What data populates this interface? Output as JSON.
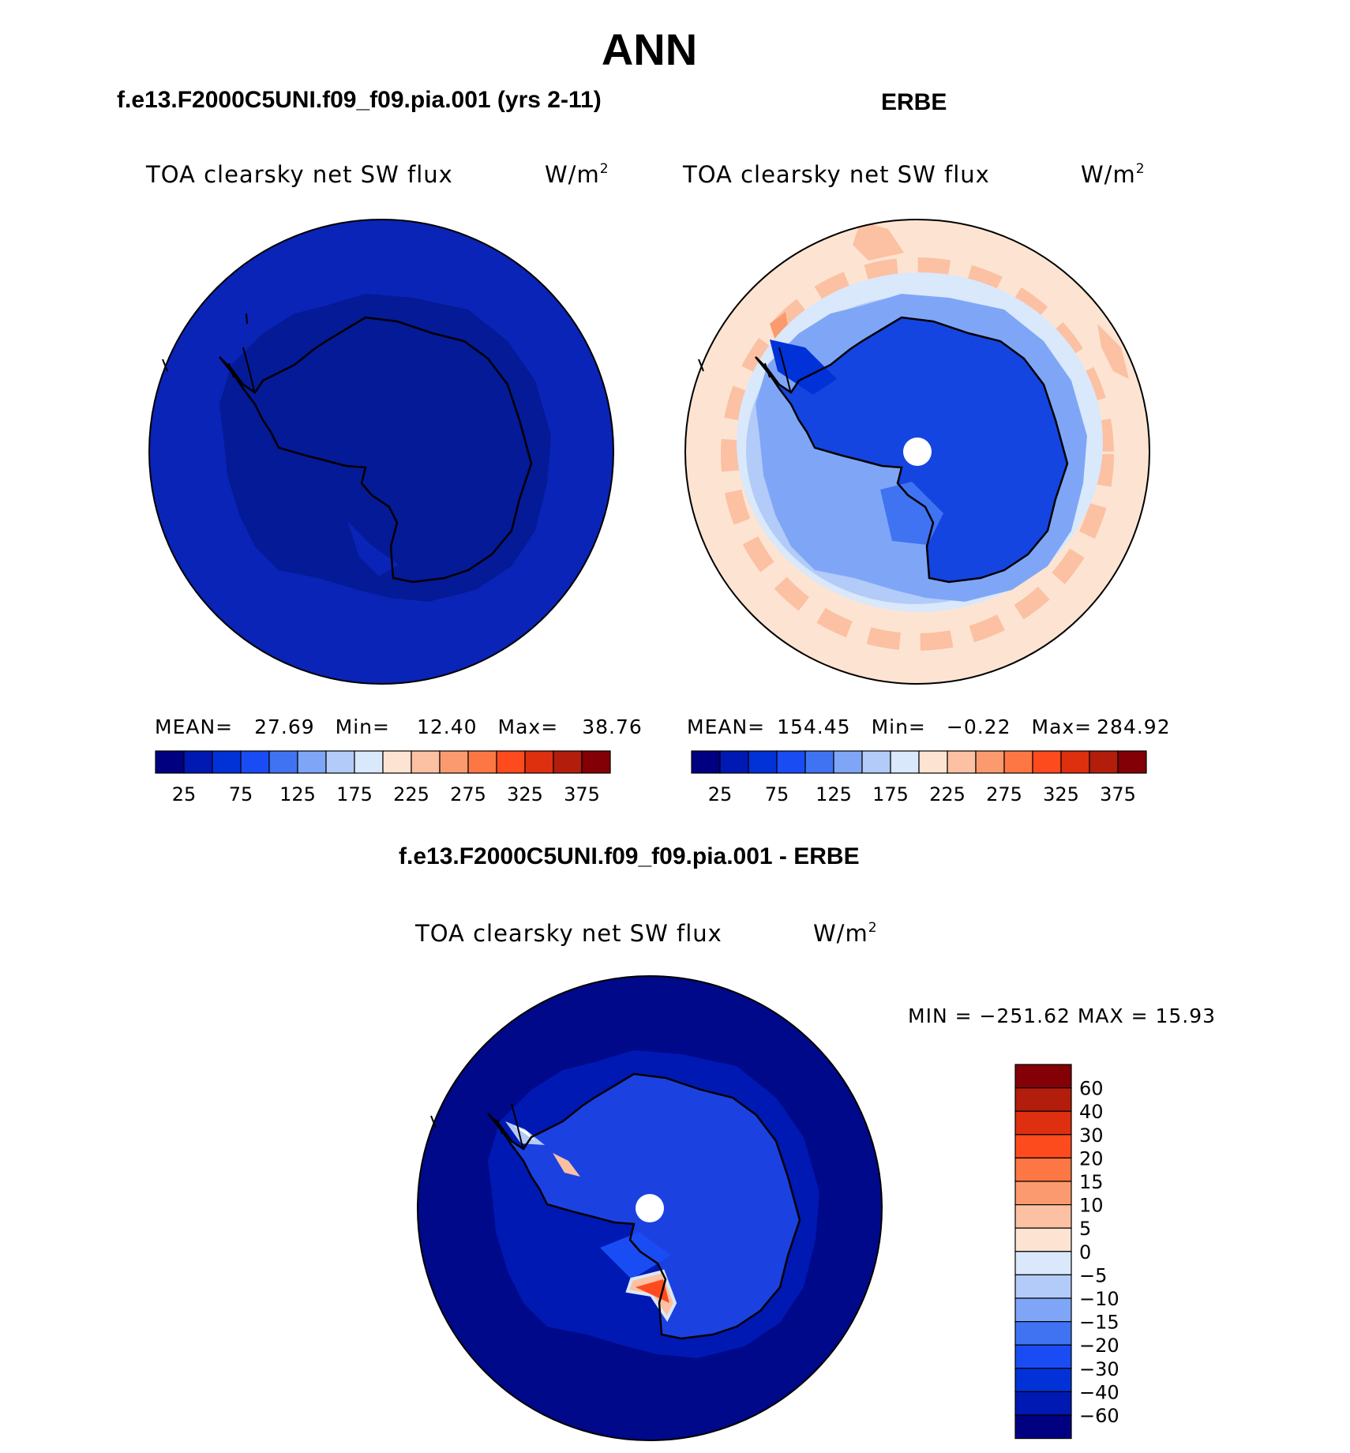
{
  "chart_data": [
    {
      "type": "heatmap",
      "projection": "south-polar-stereographic",
      "title": "ANN",
      "case_title": "f.e13.F2000C5UNI.f09_f09.pia.001 (yrs 2-11)",
      "variable": "TOA clearsky net SW flux",
      "units": "W/m2",
      "units_base": "W/m",
      "units_exp": "2",
      "stats": {
        "mean": "27.69",
        "min": "12.40",
        "max": "38.76"
      },
      "colorbar": {
        "levels": [
          25,
          50,
          75,
          100,
          125,
          150,
          175,
          200,
          225,
          250,
          275,
          300,
          325,
          350,
          375
        ],
        "tick_labels": [
          "25",
          "75",
          "125",
          "175",
          "225",
          "275",
          "325",
          "375"
        ]
      },
      "fields": {
        "ocean": 31,
        "land": 18,
        "coastal_sea_ice": 22
      }
    },
    {
      "type": "heatmap",
      "projection": "south-polar-stereographic",
      "case_title": "ERBE",
      "variable": "TOA clearsky net SW flux",
      "units": "W/m2",
      "units_base": "W/m",
      "units_exp": "2",
      "stats": {
        "mean": "154.45",
        "min": "−0.22",
        "max": "284.92"
      },
      "colorbar": {
        "levels": [
          25,
          50,
          75,
          100,
          125,
          150,
          175,
          200,
          225,
          250,
          275,
          300,
          325,
          350,
          375
        ],
        "tick_labels": [
          "25",
          "75",
          "125",
          "175",
          "225",
          "275",
          "325",
          "375"
        ]
      },
      "fields": {
        "open_ocean": 215,
        "southern_ocean_maxima": 245,
        "sea_ice_zone": 170,
        "land": 60
      }
    },
    {
      "type": "heatmap",
      "projection": "south-polar-stereographic",
      "case_title": "f.e13.F2000C5UNI.f09_f09.pia.001 - ERBE",
      "variable": "TOA clearsky net SW flux",
      "units": "W/m2",
      "units_base": "W/m",
      "units_exp": "2",
      "min_max_text": "MIN = −251.62 MAX =   15.93",
      "stats": {
        "min": -251.62,
        "max": 15.93
      },
      "colorbar": {
        "levels": [
          -60,
          -40,
          -30,
          -20,
          -15,
          -10,
          -5,
          0,
          5,
          10,
          15,
          20,
          30,
          40,
          60
        ],
        "tick_labels": [
          "60",
          "40",
          "30",
          "20",
          "15",
          "10",
          "5",
          "0",
          "−5",
          "−10",
          "−15",
          "−20",
          "−30",
          "−40",
          "−60"
        ]
      },
      "fields": {
        "ocean": -100,
        "land": -35,
        "interior": -25
      }
    }
  ],
  "palette": {
    "blue_red_16": [
      "#000080",
      "#0019b3",
      "#0032d8",
      "#1a4cf4",
      "#3f73f2",
      "#7fa6f6",
      "#b3cbf8",
      "#d9e8fa",
      "#fde4d2",
      "#fcc0a2",
      "#fb9a6e",
      "#fd7744",
      "#fe4b1e",
      "#de2f0f",
      "#b21d0c",
      "#830006"
    ],
    "ocean": "#0a24b7",
    "antarctica": "#041a96",
    "obs_ocean": "#fde4d2",
    "obs_land": "#1545e0",
    "diff_ocean": "#00098a",
    "diff_land": "#1b41e0"
  }
}
